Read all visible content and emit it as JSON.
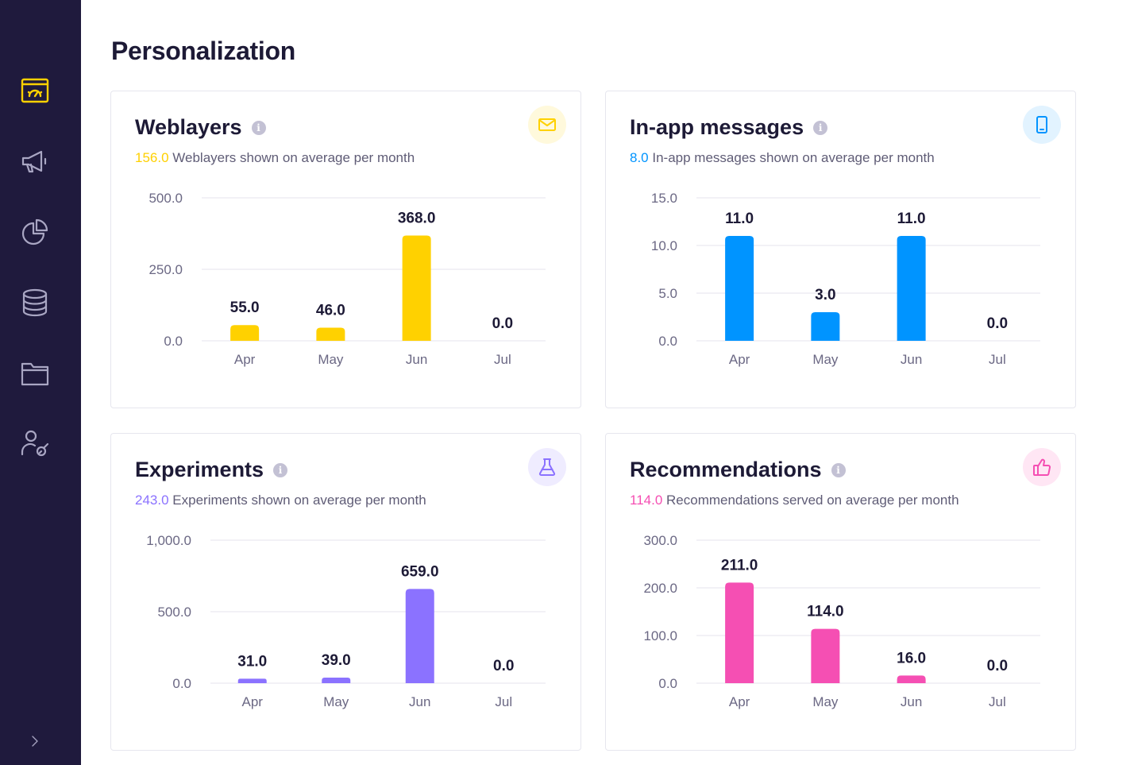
{
  "page": {
    "title": "Personalization"
  },
  "sidebar": {
    "items": [
      {
        "icon": "dashboard-icon",
        "active": true
      },
      {
        "icon": "megaphone-icon"
      },
      {
        "icon": "pie-chart-icon"
      },
      {
        "icon": "database-icon"
      },
      {
        "icon": "folder-icon"
      },
      {
        "icon": "user-settings-icon"
      }
    ],
    "expand_icon": "chevron-right-icon"
  },
  "cards": [
    {
      "title": "Weblayers",
      "average_value": "156.0",
      "average_text": "Weblayers shown on average per month",
      "icon": "mail-icon",
      "accent": "#ffd100",
      "badge_bg": "#fff9dc"
    },
    {
      "title": "In-app messages",
      "average_value": "8.0",
      "average_text": "In-app messages shown on average per month",
      "icon": "mobile-icon",
      "accent": "#0094ff",
      "badge_bg": "#e2f3ff"
    },
    {
      "title": "Experiments",
      "average_value": "243.0",
      "average_text": "Experiments shown on average per month",
      "icon": "flask-icon",
      "accent": "#8b72ff",
      "badge_bg": "#efecff"
    },
    {
      "title": "Recommendations",
      "average_value": "114.0",
      "average_text": "Recommendations served on average per month",
      "icon": "thumbs-up-icon",
      "accent": "#f54fb3",
      "badge_bg": "#ffe6f4"
    }
  ],
  "chart_data": [
    {
      "type": "bar",
      "categories": [
        "Apr",
        "May",
        "Jun",
        "Jul"
      ],
      "values": [
        55.0,
        46.0,
        368.0,
        0.0
      ],
      "value_labels": [
        "55.0",
        "46.0",
        "368.0",
        "0.0"
      ],
      "yticks": [
        0,
        250,
        500
      ],
      "ytick_labels": [
        "0.0",
        "250.0",
        "500.0"
      ],
      "ylim": [
        0,
        500
      ],
      "color": "#ffd100",
      "grid": true
    },
    {
      "type": "bar",
      "categories": [
        "Apr",
        "May",
        "Jun",
        "Jul"
      ],
      "values": [
        11.0,
        3.0,
        11.0,
        0.0
      ],
      "value_labels": [
        "11.0",
        "3.0",
        "11.0",
        "0.0"
      ],
      "yticks": [
        0,
        5,
        10,
        15
      ],
      "ytick_labels": [
        "0.0",
        "5.0",
        "10.0",
        "15.0"
      ],
      "ylim": [
        0,
        15
      ],
      "color": "#0094ff",
      "grid": true
    },
    {
      "type": "bar",
      "categories": [
        "Apr",
        "May",
        "Jun",
        "Jul"
      ],
      "values": [
        31.0,
        39.0,
        659.0,
        0.0
      ],
      "value_labels": [
        "31.0",
        "39.0",
        "659.0",
        "0.0"
      ],
      "yticks": [
        0,
        500,
        1000
      ],
      "ytick_labels": [
        "0.0",
        "500.0",
        "1,000.0"
      ],
      "ylim": [
        0,
        1000
      ],
      "color": "#8b72ff",
      "grid": true
    },
    {
      "type": "bar",
      "categories": [
        "Apr",
        "May",
        "Jun",
        "Jul"
      ],
      "values": [
        211.0,
        114.0,
        16.0,
        0.0
      ],
      "value_labels": [
        "211.0",
        "114.0",
        "16.0",
        "0.0"
      ],
      "yticks": [
        0,
        100,
        200,
        300
      ],
      "ytick_labels": [
        "0.0",
        "100.0",
        "200.0",
        "300.0"
      ],
      "ylim": [
        0,
        300
      ],
      "color": "#f54fb3",
      "grid": true
    }
  ]
}
